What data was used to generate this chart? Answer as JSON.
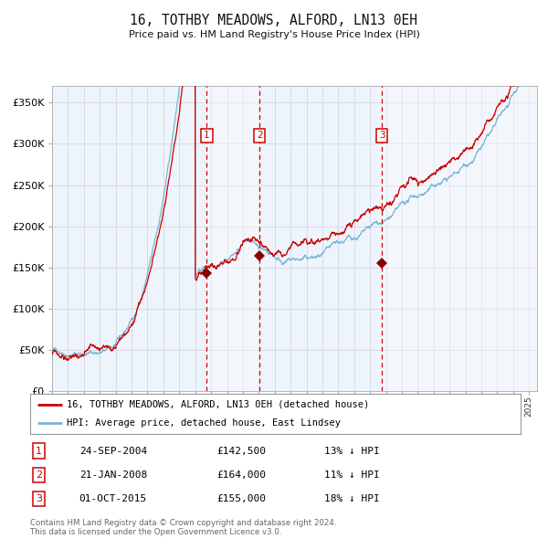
{
  "title": "16, TOTHBY MEADOWS, ALFORD, LN13 0EH",
  "subtitle": "Price paid vs. HM Land Registry's House Price Index (HPI)",
  "legend_line1": "16, TOTHBY MEADOWS, ALFORD, LN13 0EH (detached house)",
  "legend_line2": "HPI: Average price, detached house, East Lindsey",
  "footer1": "Contains HM Land Registry data © Crown copyright and database right 2024.",
  "footer2": "This data is licensed under the Open Government Licence v3.0.",
  "sales": [
    {
      "num": 1,
      "date": "24-SEP-2004",
      "price": 142500,
      "pct": "13%",
      "dir": "↓"
    },
    {
      "num": 2,
      "date": "21-JAN-2008",
      "price": 164000,
      "pct": "11%",
      "dir": "↓"
    },
    {
      "num": 3,
      "date": "01-OCT-2015",
      "price": 155000,
      "pct": "18%",
      "dir": "↓"
    }
  ],
  "sale_dates_decimal": [
    2004.73,
    2008.05,
    2015.75
  ],
  "hpi_color": "#7ab4d8",
  "price_color": "#cc0000",
  "bg_color": "#ffffff",
  "plot_bg_color": "#edf4fb",
  "shade_color": "#d4e8f7",
  "grid_color": "#c8c8d8",
  "vline_color": "#cc0000",
  "marker_color": "#8b0000",
  "xlabel_color": "#333333",
  "title_color": "#111111",
  "ylim": [
    0,
    370000
  ],
  "yticks": [
    0,
    50000,
    100000,
    150000,
    200000,
    250000,
    300000,
    350000
  ],
  "xstart": 1995.0,
  "xend": 2025.5
}
